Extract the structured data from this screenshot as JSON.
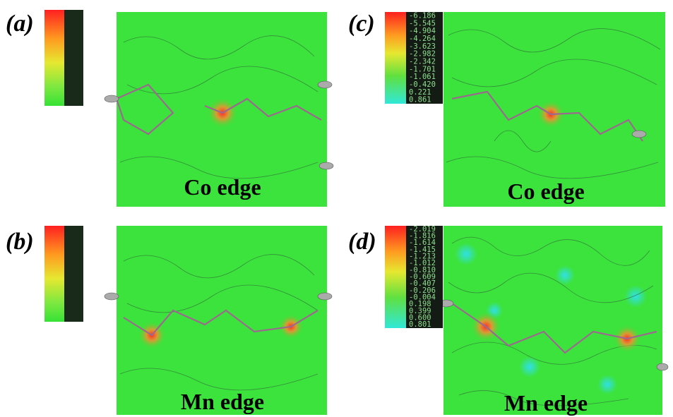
{
  "panels": [
    {
      "label": "(a)",
      "caption": "Co edge",
      "colorbar_labels": []
    },
    {
      "label": "(b)",
      "caption": "Mn edge",
      "colorbar_labels": []
    },
    {
      "label": "(c)",
      "caption": "Co edge",
      "colorbar_labels": [
        "-6.186",
        "-5.545",
        "-4.904",
        "-4.264",
        "-3.623",
        "-2.982",
        "-2.342",
        "-1.701",
        "-1.061",
        "-0.420",
        "0.221",
        "0.861"
      ]
    },
    {
      "label": "(d)",
      "caption": "Mn edge",
      "colorbar_labels": [
        "-2.019",
        "-1.816",
        "-1.614",
        "-1.415",
        "-1.213",
        "-1.012",
        "-0.810",
        "-0.609",
        "-0.407",
        "-0.206",
        "-0.004",
        "0.198",
        "0.399",
        "0.600",
        "0.801"
      ]
    }
  ]
}
